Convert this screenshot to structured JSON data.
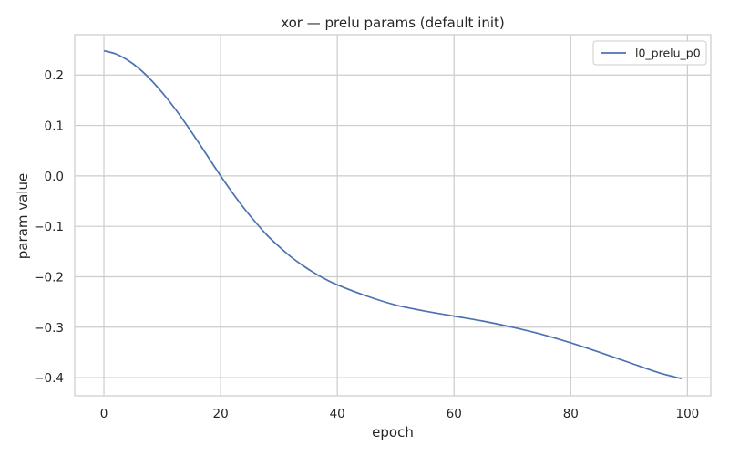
{
  "chart_data": {
    "type": "line",
    "title": "xor — prelu params (default init)",
    "xlabel": "epoch",
    "ylabel": "param value",
    "xlim": [
      -5,
      104
    ],
    "ylim": [
      -0.436,
      0.28
    ],
    "xticks": [
      0,
      20,
      40,
      60,
      80,
      100
    ],
    "yticks": [
      0.2,
      0.1,
      0.0,
      -0.1,
      -0.2,
      -0.3,
      -0.4
    ],
    "xtick_labels": [
      "0",
      "20",
      "40",
      "60",
      "80",
      "100"
    ],
    "ytick_labels": [
      "0.2",
      "0.1",
      "0.0",
      "−0.1",
      "−0.2",
      "−0.3",
      "−0.4"
    ],
    "grid": true,
    "legend_position": "top-right",
    "series": [
      {
        "name": "l0_prelu_p0",
        "color": "#4c72b0",
        "x": [
          0,
          2,
          4,
          6,
          8,
          10,
          12,
          14,
          16,
          18,
          20,
          22,
          24,
          26,
          28,
          30,
          32,
          34,
          36,
          38,
          40,
          45,
          50,
          55,
          60,
          65,
          70,
          75,
          80,
          85,
          90,
          95,
          99
        ],
        "y": [
          0.248,
          0.242,
          0.23,
          0.213,
          0.191,
          0.165,
          0.136,
          0.104,
          0.07,
          0.035,
          0.0,
          -0.033,
          -0.064,
          -0.092,
          -0.118,
          -0.14,
          -0.16,
          -0.177,
          -0.192,
          -0.205,
          -0.216,
          -0.238,
          -0.256,
          -0.268,
          -0.278,
          -0.288,
          -0.3,
          -0.314,
          -0.331,
          -0.35,
          -0.37,
          -0.39,
          -0.402
        ]
      }
    ]
  }
}
